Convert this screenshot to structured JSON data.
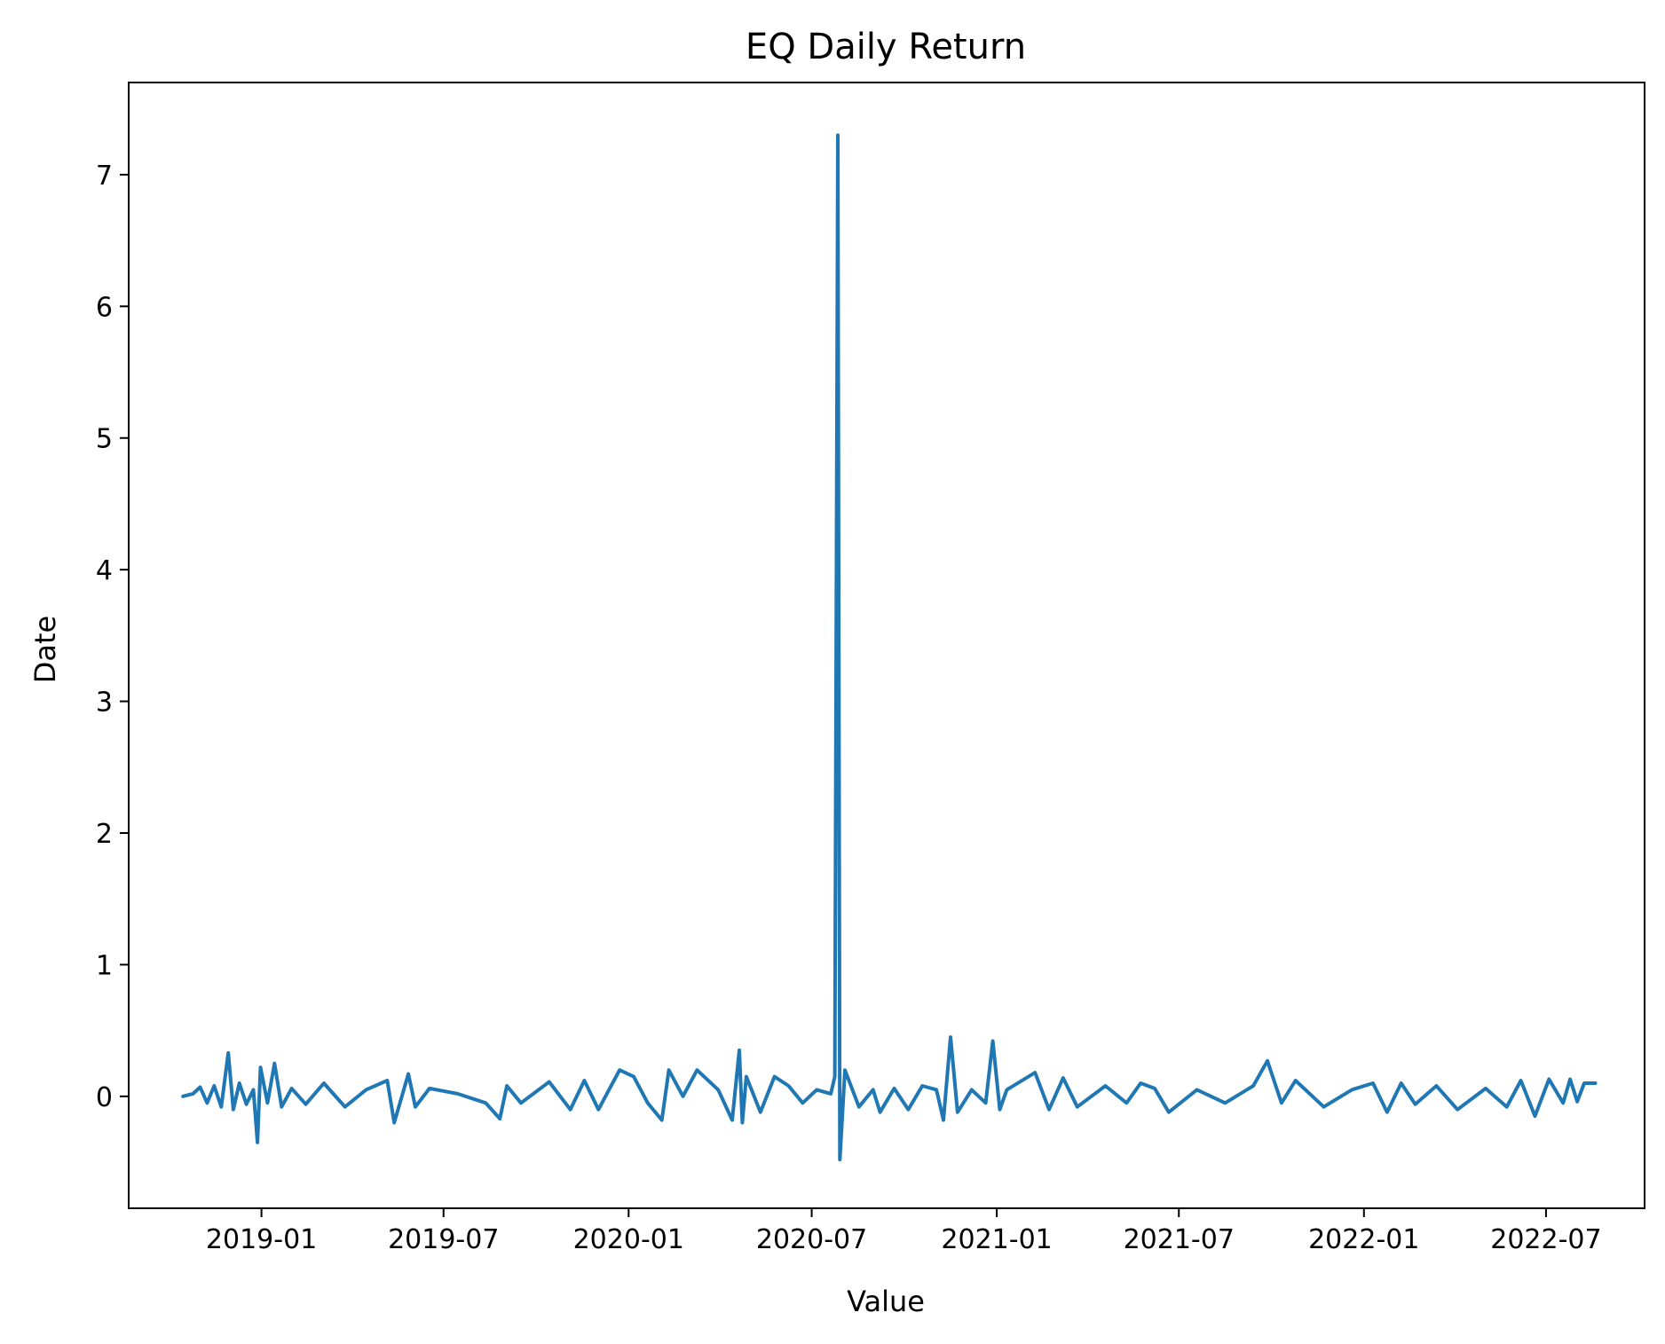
{
  "chart_data": {
    "type": "line",
    "title": "EQ Daily Return",
    "xlabel": "Value",
    "ylabel": "Date",
    "grid": false,
    "legend": "none",
    "x_range": [
      "2018-08-22",
      "2022-10-07"
    ],
    "ylim": [
      -0.85,
      7.7
    ],
    "x_ticks": [
      "2019-01",
      "2019-07",
      "2020-01",
      "2020-07",
      "2021-01",
      "2021-07",
      "2022-01",
      "2022-07"
    ],
    "y_ticks": [
      0,
      1,
      2,
      3,
      4,
      5,
      6,
      7
    ],
    "series": [
      {
        "name": "EQ Daily Return",
        "color": "#1f77b4",
        "data_start": "2018-10-15",
        "data_end": "2022-08-19",
        "points": [
          [
            "2018-10-15",
            0.0
          ],
          [
            "2018-10-25",
            0.02
          ],
          [
            "2018-11-01",
            0.07
          ],
          [
            "2018-11-08",
            -0.05
          ],
          [
            "2018-11-15",
            0.08
          ],
          [
            "2018-11-22",
            -0.08
          ],
          [
            "2018-11-29",
            0.33
          ],
          [
            "2018-12-04",
            -0.1
          ],
          [
            "2018-12-10",
            0.1
          ],
          [
            "2018-12-17",
            -0.06
          ],
          [
            "2018-12-24",
            0.05
          ],
          [
            "2018-12-28",
            -0.35
          ],
          [
            "2018-12-31",
            0.22
          ],
          [
            "2019-01-07",
            -0.05
          ],
          [
            "2019-01-14",
            0.25
          ],
          [
            "2019-01-21",
            -0.08
          ],
          [
            "2019-01-31",
            0.06
          ],
          [
            "2019-02-14",
            -0.06
          ],
          [
            "2019-03-04",
            0.1
          ],
          [
            "2019-03-25",
            -0.08
          ],
          [
            "2019-04-15",
            0.05
          ],
          [
            "2019-05-06",
            0.12
          ],
          [
            "2019-05-13",
            -0.2
          ],
          [
            "2019-05-27",
            0.17
          ],
          [
            "2019-06-03",
            -0.08
          ],
          [
            "2019-06-17",
            0.06
          ],
          [
            "2019-07-15",
            0.02
          ],
          [
            "2019-08-12",
            -0.05
          ],
          [
            "2019-08-26",
            -0.17
          ],
          [
            "2019-09-02",
            0.08
          ],
          [
            "2019-09-16",
            -0.05
          ],
          [
            "2019-10-14",
            0.11
          ],
          [
            "2019-11-04",
            -0.1
          ],
          [
            "2019-11-18",
            0.12
          ],
          [
            "2019-12-02",
            -0.1
          ],
          [
            "2019-12-23",
            0.2
          ],
          [
            "2020-01-06",
            0.15
          ],
          [
            "2020-01-20",
            -0.05
          ],
          [
            "2020-02-03",
            -0.18
          ],
          [
            "2020-02-10",
            0.2
          ],
          [
            "2020-02-24",
            0.0
          ],
          [
            "2020-03-09",
            0.2
          ],
          [
            "2020-03-30",
            0.05
          ],
          [
            "2020-04-13",
            -0.18
          ],
          [
            "2020-04-20",
            0.35
          ],
          [
            "2020-04-23",
            -0.2
          ],
          [
            "2020-04-27",
            0.15
          ],
          [
            "2020-05-11",
            -0.12
          ],
          [
            "2020-05-25",
            0.15
          ],
          [
            "2020-06-08",
            0.08
          ],
          [
            "2020-06-22",
            -0.05
          ],
          [
            "2020-07-06",
            0.05
          ],
          [
            "2020-07-20",
            0.02
          ],
          [
            "2020-07-24",
            0.15
          ],
          [
            "2020-07-27",
            7.3
          ],
          [
            "2020-07-29",
            -0.48
          ],
          [
            "2020-08-03",
            0.2
          ],
          [
            "2020-08-17",
            -0.08
          ],
          [
            "2020-08-31",
            0.05
          ],
          [
            "2020-09-07",
            -0.12
          ],
          [
            "2020-09-21",
            0.06
          ],
          [
            "2020-10-05",
            -0.1
          ],
          [
            "2020-10-19",
            0.08
          ],
          [
            "2020-11-02",
            0.05
          ],
          [
            "2020-11-09",
            -0.18
          ],
          [
            "2020-11-16",
            0.45
          ],
          [
            "2020-11-23",
            -0.12
          ],
          [
            "2020-12-07",
            0.05
          ],
          [
            "2020-12-21",
            -0.05
          ],
          [
            "2020-12-28",
            0.42
          ],
          [
            "2021-01-04",
            -0.1
          ],
          [
            "2021-01-11",
            0.05
          ],
          [
            "2021-02-08",
            0.18
          ],
          [
            "2021-02-22",
            -0.1
          ],
          [
            "2021-03-08",
            0.14
          ],
          [
            "2021-03-22",
            -0.08
          ],
          [
            "2021-04-19",
            0.08
          ],
          [
            "2021-05-10",
            -0.05
          ],
          [
            "2021-05-24",
            0.1
          ],
          [
            "2021-06-07",
            0.06
          ],
          [
            "2021-06-21",
            -0.12
          ],
          [
            "2021-07-19",
            0.05
          ],
          [
            "2021-08-16",
            -0.05
          ],
          [
            "2021-09-13",
            0.08
          ],
          [
            "2021-09-27",
            0.27
          ],
          [
            "2021-10-11",
            -0.05
          ],
          [
            "2021-10-25",
            0.12
          ],
          [
            "2021-11-22",
            -0.08
          ],
          [
            "2021-12-20",
            0.05
          ],
          [
            "2022-01-10",
            0.1
          ],
          [
            "2022-01-24",
            -0.12
          ],
          [
            "2022-02-07",
            0.1
          ],
          [
            "2022-02-21",
            -0.06
          ],
          [
            "2022-03-14",
            0.08
          ],
          [
            "2022-04-04",
            -0.1
          ],
          [
            "2022-05-02",
            0.06
          ],
          [
            "2022-05-23",
            -0.08
          ],
          [
            "2022-06-06",
            0.12
          ],
          [
            "2022-06-20",
            -0.15
          ],
          [
            "2022-07-04",
            0.13
          ],
          [
            "2022-07-18",
            -0.05
          ],
          [
            "2022-07-25",
            0.13
          ],
          [
            "2022-08-01",
            -0.04
          ],
          [
            "2022-08-08",
            0.1
          ],
          [
            "2022-08-19",
            0.1
          ]
        ]
      }
    ]
  }
}
